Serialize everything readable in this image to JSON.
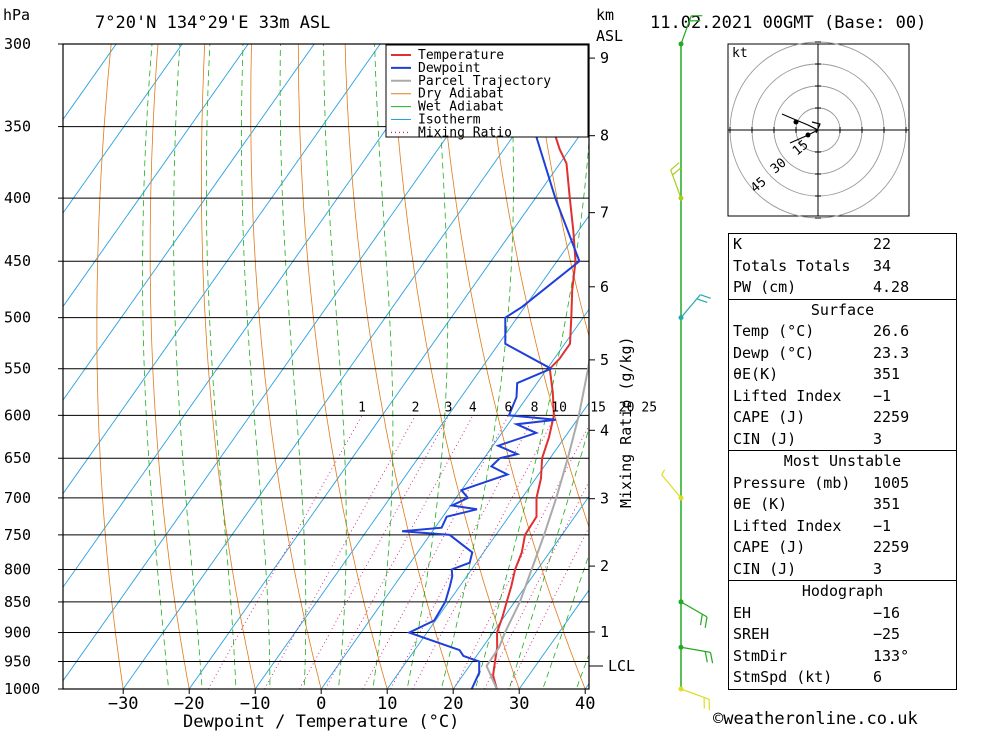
{
  "header": {
    "location": "7°20'N 134°29'E 33m ASL",
    "datetime": "11.02.2021 00GMT (Base: 00)",
    "pressure_unit": "hPa",
    "km_label": "km",
    "asl_label": "ASL"
  },
  "colors": {
    "temperature": "#e03030",
    "dewpoint": "#1f3fd8",
    "parcel": "#aaaaaa",
    "dry_adiabat": "#e07a1a",
    "wet_adiabat": "#1fae1f",
    "isotherm": "#2aa0e0",
    "mixing_ratio": "#d0208a",
    "wind_pole": "#22aa22"
  },
  "chart_data": {
    "type": "line",
    "xlabel": "Dewpoint / Temperature (°C)",
    "ylabel": "hPa",
    "right_label": "Mixing Ratio (g/kg)",
    "x_ticks": [
      -30,
      -20,
      -10,
      0,
      10,
      20,
      30,
      40
    ],
    "xlim": [
      -40,
      40
    ],
    "y_ticks": [
      300,
      350,
      400,
      450,
      500,
      550,
      600,
      650,
      700,
      750,
      800,
      850,
      900,
      950,
      1000
    ],
    "ylim": [
      1000,
      300
    ],
    "y_scale": "log",
    "km_ticks": [
      {
        "km": 1,
        "p": 899
      },
      {
        "km": 2,
        "p": 795
      },
      {
        "km": 3,
        "p": 701
      },
      {
        "km": 4,
        "p": 617
      },
      {
        "km": 5,
        "p": 541
      },
      {
        "km": 6,
        "p": 472
      },
      {
        "km": 7,
        "p": 411
      },
      {
        "km": 8,
        "p": 356
      },
      {
        "km": 9,
        "p": 308
      }
    ],
    "lcl": {
      "label": "LCL",
      "p": 958
    },
    "mixing_ratio_labels": [
      "1",
      "2",
      "3",
      "4",
      "6",
      "8",
      "10",
      "15",
      "20",
      "25"
    ],
    "mixing_ratio_values": [
      1,
      2,
      3,
      4,
      6,
      8,
      10,
      15,
      20,
      25
    ],
    "legend": [
      "Temperature",
      "Dewpoint",
      "Parcel Trajectory",
      "Dry Adiabat",
      "Wet Adiabat",
      "Isotherm",
      "Mixing Ratio"
    ],
    "series": [
      {
        "name": "Temperature",
        "points": [
          [
            1000,
            26.6
          ],
          [
            975,
            24.6
          ],
          [
            950,
            23.4
          ],
          [
            925,
            22.2
          ],
          [
            900,
            20.6
          ],
          [
            875,
            19.8
          ],
          [
            850,
            18.8
          ],
          [
            825,
            17.8
          ],
          [
            800,
            16.6
          ],
          [
            775,
            15.8
          ],
          [
            750,
            14.4
          ],
          [
            725,
            14.2
          ],
          [
            700,
            12.2
          ],
          [
            675,
            10.8
          ],
          [
            650,
            8.8
          ],
          [
            625,
            7.6
          ],
          [
            600,
            6.0
          ],
          [
            575,
            3.4
          ],
          [
            550,
            0.4
          ],
          [
            540,
            0.8
          ],
          [
            525,
            0.8
          ],
          [
            500,
            -1.8
          ],
          [
            475,
            -4.6
          ],
          [
            450,
            -7.2
          ],
          [
            425,
            -10.8
          ],
          [
            400,
            -14.8
          ],
          [
            375,
            -19.0
          ],
          [
            365,
            -21.6
          ],
          [
            340,
            -27.5
          ],
          [
            320,
            -33.0
          ],
          [
            300,
            -40.0
          ]
        ]
      },
      {
        "name": "Dewpoint",
        "points": [
          [
            1000,
            22.8
          ],
          [
            970,
            22.2
          ],
          [
            950,
            21.0
          ],
          [
            940,
            18.0
          ],
          [
            930,
            16.8
          ],
          [
            900,
            7.3
          ],
          [
            880,
            9.8
          ],
          [
            850,
            9.5
          ],
          [
            825,
            8.5
          ],
          [
            810,
            7.8
          ],
          [
            800,
            7.0
          ],
          [
            790,
            9.0
          ],
          [
            775,
            8.3
          ],
          [
            750,
            3.0
          ],
          [
            745,
            -4.6
          ],
          [
            740,
            1.0
          ],
          [
            725,
            0.6
          ],
          [
            715,
            4.4
          ],
          [
            710,
            0.2
          ],
          [
            700,
            1.8
          ],
          [
            690,
            0.0
          ],
          [
            670,
            5.3
          ],
          [
            660,
            2.0
          ],
          [
            650,
            2.4
          ],
          [
            645,
            4.6
          ],
          [
            635,
            0.8
          ],
          [
            620,
            5.2
          ],
          [
            610,
            1.3
          ],
          [
            605,
            6.8
          ],
          [
            600,
            -0.8
          ],
          [
            580,
            -1.6
          ],
          [
            565,
            -3.0
          ],
          [
            550,
            0.6
          ],
          [
            525,
            -9.0
          ],
          [
            500,
            -11.8
          ],
          [
            490,
            -10.4
          ],
          [
            450,
            -6.6
          ],
          [
            400,
            -17.0
          ],
          [
            350,
            -28.0
          ],
          [
            330,
            -34.0
          ],
          [
            320,
            -47.0
          ],
          [
            310,
            -50.0
          ],
          [
            300,
            -46.0
          ]
        ]
      },
      {
        "name": "Parcel Trajectory",
        "points": [
          [
            1000,
            26.6
          ],
          [
            958,
            22.6
          ],
          [
            925,
            22.5
          ],
          [
            900,
            21.8
          ],
          [
            850,
            20.8
          ],
          [
            800,
            19.1
          ],
          [
            750,
            17.3
          ],
          [
            700,
            15.2
          ],
          [
            650,
            12.7
          ],
          [
            600,
            9.8
          ],
          [
            550,
            6.2
          ],
          [
            500,
            1.9
          ],
          [
            450,
            -3.5
          ],
          [
            400,
            -10.3
          ],
          [
            375,
            -14.5
          ],
          [
            365,
            -16.3
          ]
        ]
      }
    ]
  },
  "hodograph": {
    "unit": "kt",
    "ring_labels": [
      "15",
      "30",
      "45"
    ]
  },
  "wind_barbs": [
    {
      "p": 300,
      "dir": 20,
      "spd": 10,
      "color": "#22aa22"
    },
    {
      "p": 400,
      "dir": 340,
      "spd": 10,
      "color": "#aacc22"
    },
    {
      "p": 500,
      "dir": 40,
      "spd": 10,
      "color": "#22aaaa"
    },
    {
      "p": 700,
      "dir": 320,
      "spd": 5,
      "color": "#dddd22"
    },
    {
      "p": 850,
      "dir": 120,
      "spd": 10,
      "color": "#22aa22"
    },
    {
      "p": 925,
      "dir": 100,
      "spd": 10,
      "color": "#22aa22"
    },
    {
      "p": 1000,
      "dir": 110,
      "spd": 10,
      "color": "#dddd22"
    }
  ],
  "indices": {
    "top": [
      {
        "key": "K",
        "value": "22"
      },
      {
        "key": "Totals Totals",
        "value": "34"
      },
      {
        "key": "PW (cm)",
        "value": "4.28"
      }
    ],
    "surface": {
      "title": "Surface",
      "rows": [
        {
          "key": "Temp (°C)",
          "value": "26.6"
        },
        {
          "key": "Dewp (°C)",
          "value": "23.3"
        },
        {
          "key": "θE(K)",
          "value": "351"
        },
        {
          "key": "Lifted Index",
          "value": "−1"
        },
        {
          "key": "CAPE (J)",
          "value": "2259"
        },
        {
          "key": "CIN (J)",
          "value": "3"
        }
      ]
    },
    "most_unstable": {
      "title": "Most Unstable",
      "rows": [
        {
          "key": "Pressure (mb)",
          "value": "1005"
        },
        {
          "key": "θE (K)",
          "value": "351"
        },
        {
          "key": "Lifted Index",
          "value": "−1"
        },
        {
          "key": "CAPE (J)",
          "value": "2259"
        },
        {
          "key": "CIN (J)",
          "value": "3"
        }
      ]
    },
    "hodograph": {
      "title": "Hodograph",
      "rows": [
        {
          "key": "EH",
          "value": "−16"
        },
        {
          "key": "SREH",
          "value": "−25"
        },
        {
          "key": "StmDir",
          "value": "133°"
        },
        {
          "key": "StmSpd (kt)",
          "value": "6"
        }
      ]
    }
  },
  "credit": "©weatheronline.co.uk"
}
